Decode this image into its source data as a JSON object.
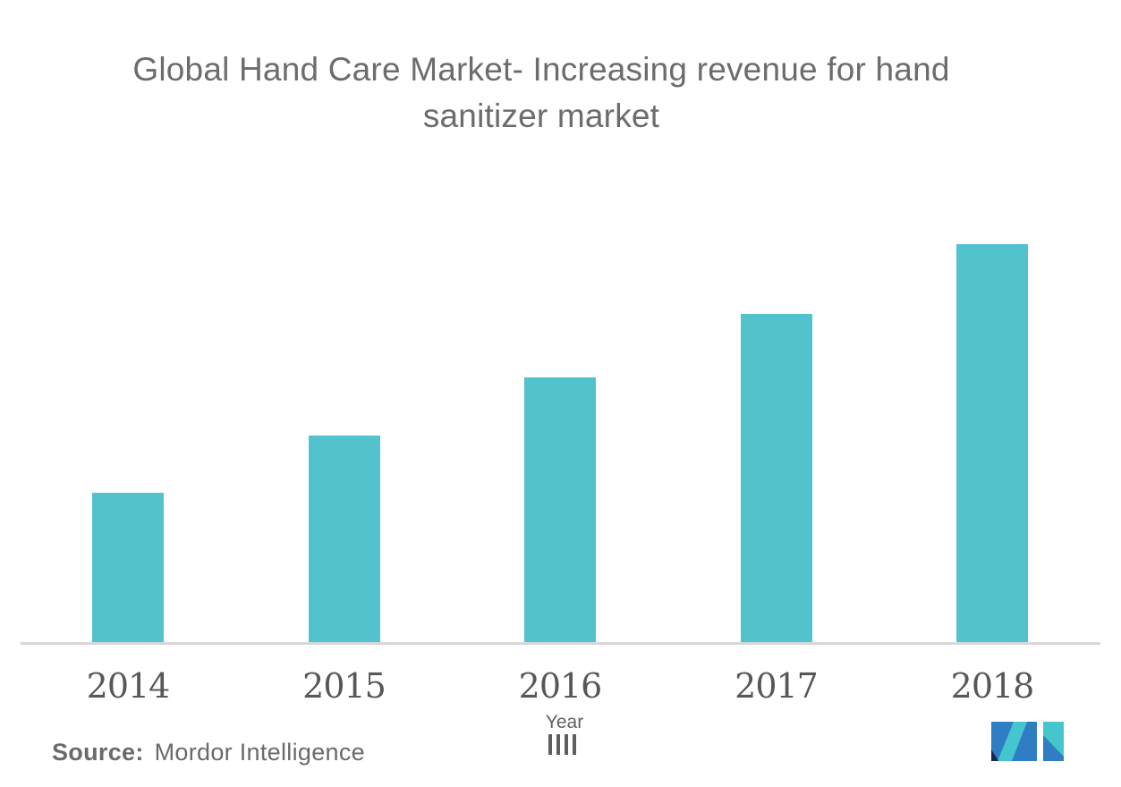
{
  "title": {
    "line1": "Global Hand Care Market- Increasing revenue for hand",
    "line2": "sanitizer market"
  },
  "chart_data": {
    "type": "bar",
    "title": "Global Hand Care Market- Increasing revenue for hand sanitizer market",
    "categories": [
      "2014",
      "2015",
      "2016",
      "2017",
      "2018"
    ],
    "values": [
      37.7,
      52.0,
      66.6,
      82.5,
      100
    ],
    "values_unit": "relative height, % of 2018 bar (no y-axis scale shown in chart)",
    "xlabel": "Year",
    "ylabel": "",
    "grid": false,
    "legend": false,
    "bar_color": "#52C3CC",
    "axis_line_color": "#D8D8D8"
  },
  "x_axis": {
    "title": "Year"
  },
  "source": {
    "label": "Source:",
    "text": "Mordor Intelligence"
  },
  "logo": {
    "name": "mordor-intelligence-logo-mark",
    "colors": {
      "blue": "#2F7EC3",
      "teal": "#45C6CE",
      "navy": "#16294D"
    }
  }
}
